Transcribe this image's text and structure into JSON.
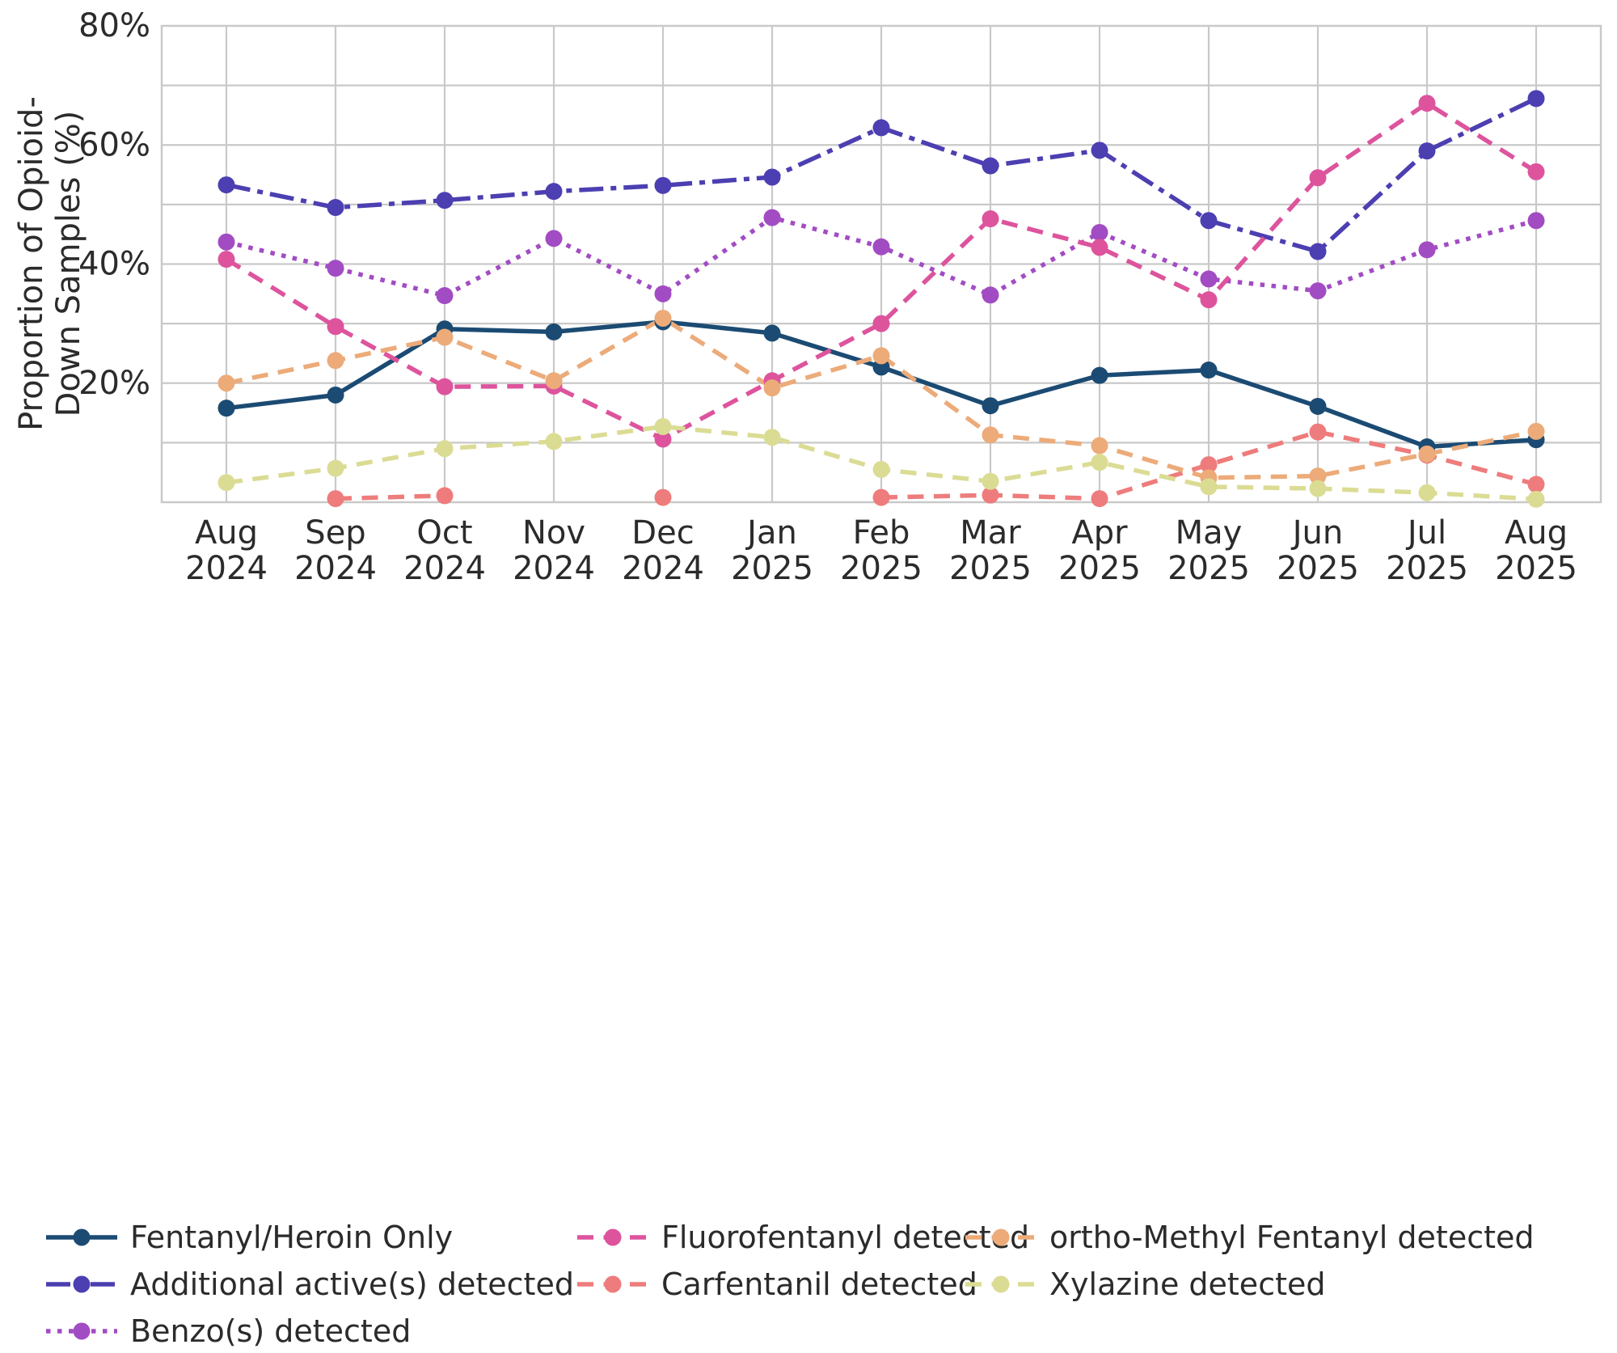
{
  "figure": {
    "background": "#ffffff",
    "text_color": "#2b2b2b",
    "grid_color": "#c9c9c9"
  },
  "chart_data": {
    "type": "line",
    "title": "",
    "xlabel": "",
    "ylabel": "Proportion of Opioid-Down Samples (%)",
    "ylabel_lines": [
      "Proportion of Opioid-",
      "Down Samples (%)"
    ],
    "ylim": [
      0,
      80
    ],
    "grid": "on",
    "legend_position": "below-left, 3 columns",
    "ytick_values": [
      20,
      40,
      60,
      80
    ],
    "ytick_labels": [
      "20%",
      "40%",
      "60%",
      "80%"
    ],
    "categories": [
      "Aug 2024",
      "Sep 2024",
      "Oct 2024",
      "Nov 2024",
      "Dec 2024",
      "Jan 2025",
      "Feb 2025",
      "Mar 2025",
      "Apr 2025",
      "May 2025",
      "Jun 2025",
      "Jul 2025",
      "Aug 2025"
    ],
    "x_tick_line1": [
      "Aug",
      "Sep",
      "Oct",
      "Nov",
      "Dec",
      "Jan",
      "Feb",
      "Mar",
      "Apr",
      "May",
      "Jun",
      "Jul",
      "Aug"
    ],
    "x_tick_line2": [
      "2024",
      "2024",
      "2024",
      "2024",
      "2024",
      "2025",
      "2025",
      "2025",
      "2025",
      "2025",
      "2025",
      "2025",
      "2025"
    ],
    "series": [
      {
        "name": "Fentanyl/Heroin Only",
        "color": "#1B4B73",
        "style": "solid",
        "values": [
          15.8,
          18.0,
          29.1,
          28.6,
          30.3,
          28.4,
          22.7,
          16.2,
          21.3,
          22.2,
          16.1,
          9.3,
          10.5
        ]
      },
      {
        "name": "Additional active(s) detected",
        "color": "#4C3FB1",
        "style": "dashdot",
        "values": [
          53.3,
          49.5,
          50.7,
          52.2,
          53.2,
          54.6,
          62.9,
          56.5,
          59.1,
          47.3,
          42.1,
          59.0,
          67.8
        ]
      },
      {
        "name": "Benzo(s) detected",
        "color": "#A24CC3",
        "style": "dotted",
        "values": [
          43.7,
          39.3,
          34.7,
          44.3,
          35.0,
          47.8,
          42.9,
          34.8,
          45.3,
          37.5,
          35.5,
          42.4,
          47.3
        ]
      },
      {
        "name": "Fluorofentanyl detected",
        "color": "#DD549D",
        "style": "dashed",
        "values": [
          40.8,
          29.5,
          19.4,
          19.5,
          10.6,
          20.4,
          30.0,
          47.6,
          42.8,
          34.0,
          54.5,
          67.0,
          55.5
        ]
      },
      {
        "name": "Carfentanil detected",
        "color": "#EE7C7C",
        "style": "dashed",
        "values": [
          null,
          0.6,
          1.1,
          null,
          0.8,
          null,
          0.8,
          1.2,
          0.6,
          6.3,
          11.8,
          7.9,
          3.0
        ]
      },
      {
        "name": "ortho-Methyl Fentanyl detected",
        "color": "#ECAB79",
        "style": "dashed",
        "values": [
          20.0,
          23.8,
          27.7,
          20.4,
          30.9,
          19.2,
          24.6,
          11.3,
          9.5,
          4.1,
          4.4,
          8.1,
          11.9
        ]
      },
      {
        "name": "Xylazine detected",
        "color": "#DBDC94",
        "style": "dashed",
        "values": [
          3.3,
          5.7,
          9.0,
          10.2,
          12.7,
          10.9,
          5.5,
          3.5,
          6.7,
          2.6,
          2.3,
          1.6,
          0.5
        ]
      }
    ]
  },
  "legend": {
    "items": [
      {
        "series": 0,
        "col": 0,
        "row": 0
      },
      {
        "series": 1,
        "col": 0,
        "row": 1
      },
      {
        "series": 2,
        "col": 0,
        "row": 2
      },
      {
        "series": 3,
        "col": 1,
        "row": 0
      },
      {
        "series": 4,
        "col": 1,
        "row": 1
      },
      {
        "series": 5,
        "col": 2,
        "row": 0
      },
      {
        "series": 6,
        "col": 2,
        "row": 1
      }
    ]
  }
}
